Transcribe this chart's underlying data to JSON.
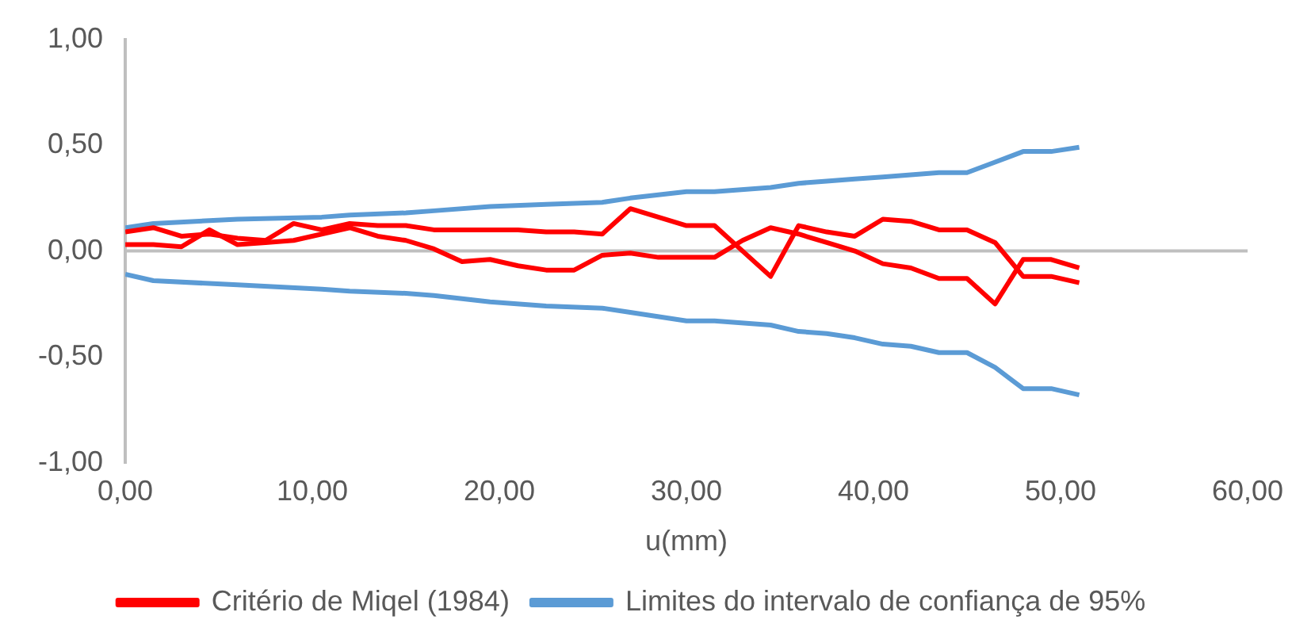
{
  "chart_data": {
    "type": "line",
    "xlabel": "u(mm)",
    "xlim": [
      0,
      60
    ],
    "xticks": [
      {
        "value": 0,
        "label": "0,00"
      },
      {
        "value": 10,
        "label": "10,00"
      },
      {
        "value": 20,
        "label": "20,00"
      },
      {
        "value": 30,
        "label": "30,00"
      },
      {
        "value": 40,
        "label": "40,00"
      },
      {
        "value": 50,
        "label": "50,00"
      },
      {
        "value": 60,
        "label": "60,00"
      }
    ],
    "ylim": [
      -1,
      1
    ],
    "yticks": [
      {
        "value": -1,
        "label": "-1,00"
      },
      {
        "value": -0.5,
        "label": "-0,50"
      },
      {
        "value": 0,
        "label": "0,00"
      },
      {
        "value": 0.5,
        "label": "0,50"
      },
      {
        "value": 1,
        "label": "1,00"
      }
    ],
    "grid": false,
    "ref_lines": [
      {
        "axis": "y",
        "value": 0,
        "color": "#bfbfbf"
      }
    ],
    "legend": "bottom",
    "marker": "none",
    "line_style": "solid",
    "series": [
      {
        "name": "Critério de Miqel (1984)",
        "color": "#ff0000",
        "x": [
          0,
          1.5,
          3,
          4.5,
          6,
          7.5,
          9,
          10.5,
          12,
          13.5,
          15,
          16.5,
          18,
          19.5,
          21,
          22.5,
          24,
          25.5,
          27,
          28.5,
          30,
          31.5,
          33,
          34.5,
          36,
          37.5,
          39,
          40.5,
          42,
          43.5,
          45,
          46.5,
          48,
          49.5,
          51
        ],
        "values": [
          0.09,
          0.11,
          0.07,
          0.08,
          0.06,
          0.05,
          0.13,
          0.1,
          0.13,
          0.12,
          0.12,
          0.1,
          0.1,
          0.1,
          0.1,
          0.09,
          0.09,
          0.08,
          0.2,
          0.16,
          0.12,
          0.12,
          0.0,
          -0.12,
          0.12,
          0.09,
          0.07,
          0.15,
          0.14,
          0.1,
          0.1,
          0.04,
          -0.12,
          -0.12,
          -0.15
        ]
      },
      {
        "color": "#ff0000",
        "x": [
          0,
          1.5,
          3,
          4.5,
          6,
          7.5,
          9,
          10.5,
          12,
          13.5,
          15,
          16.5,
          18,
          19.5,
          21,
          22.5,
          24,
          25.5,
          27,
          28.5,
          30,
          31.5,
          33,
          34.5,
          36,
          37.5,
          39,
          40.5,
          42,
          43.5,
          45,
          46.5,
          48,
          49.5,
          51
        ],
        "values": [
          0.03,
          0.03,
          0.02,
          0.1,
          0.03,
          0.04,
          0.05,
          0.08,
          0.11,
          0.07,
          0.05,
          0.01,
          -0.05,
          -0.04,
          -0.07,
          -0.09,
          -0.09,
          -0.02,
          -0.01,
          -0.03,
          -0.03,
          -0.03,
          0.05,
          0.11,
          0.08,
          0.04,
          0.0,
          -0.06,
          -0.08,
          -0.13,
          -0.13,
          -0.25,
          -0.04,
          -0.04,
          -0.08
        ]
      },
      {
        "name": "Limites do intervalo de confiança de 95%",
        "color": "#5b9bd5",
        "x": [
          0,
          1.5,
          6,
          10.5,
          12,
          15,
          16.5,
          19.5,
          22.5,
          25.5,
          27,
          30,
          31.5,
          34.5,
          36,
          37.5,
          39,
          40.5,
          42,
          43.5,
          45,
          46.5,
          48,
          49.5,
          51
        ],
        "values": [
          0.11,
          0.13,
          0.15,
          0.16,
          0.17,
          0.18,
          0.19,
          0.21,
          0.22,
          0.23,
          0.25,
          0.28,
          0.28,
          0.3,
          0.32,
          0.33,
          0.34,
          0.35,
          0.36,
          0.37,
          0.37,
          0.42,
          0.47,
          0.47,
          0.49
        ]
      },
      {
        "color": "#5b9bd5",
        "x": [
          0,
          1.5,
          6,
          10.5,
          12,
          15,
          16.5,
          19.5,
          22.5,
          25.5,
          27,
          30,
          31.5,
          34.5,
          36,
          37.5,
          39,
          40.5,
          42,
          43.5,
          45,
          46.5,
          48,
          49.5,
          51
        ],
        "values": [
          -0.11,
          -0.14,
          -0.16,
          -0.18,
          -0.19,
          -0.2,
          -0.21,
          -0.24,
          -0.26,
          -0.27,
          -0.29,
          -0.33,
          -0.33,
          -0.35,
          -0.38,
          -0.39,
          -0.41,
          -0.44,
          -0.45,
          -0.48,
          -0.48,
          -0.55,
          -0.65,
          -0.65,
          -0.68
        ]
      }
    ]
  }
}
